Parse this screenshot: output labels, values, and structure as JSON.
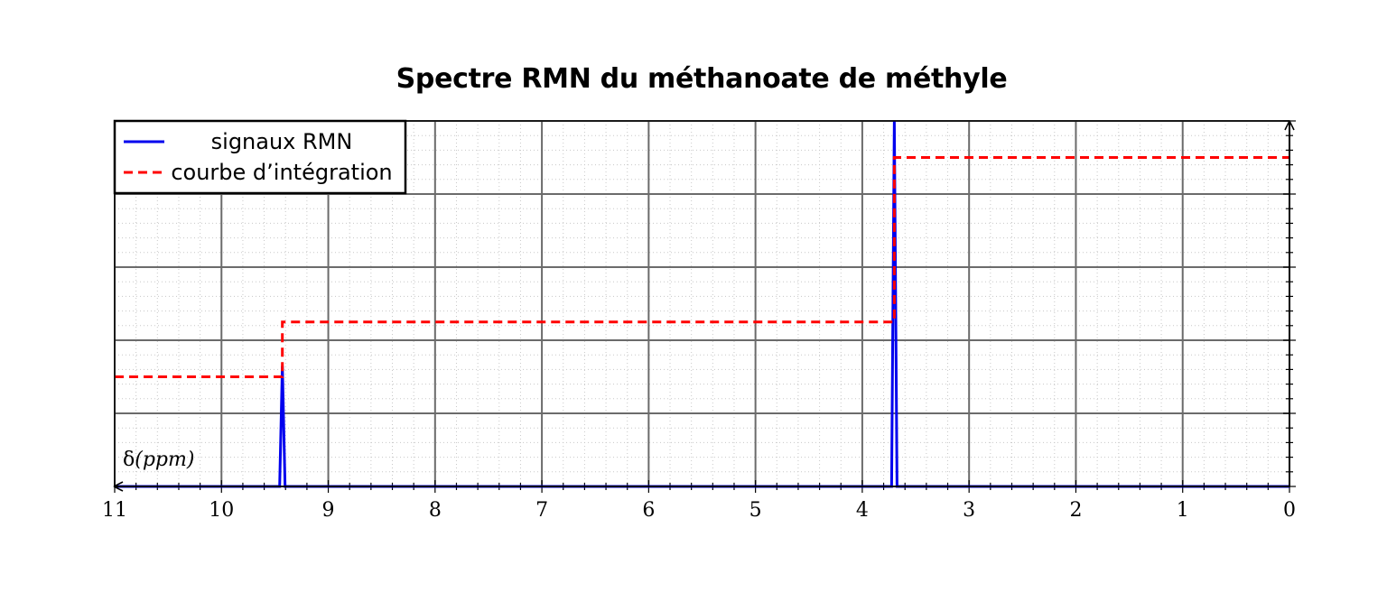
{
  "chart_data": {
    "type": "line",
    "title": "Spectre RMN du méthanoate de méthyle",
    "xlabel_symbol": "δ",
    "xlabel_unit": "(ppm)",
    "xlim": [
      11,
      0
    ],
    "x_reversed": true,
    "x_ticks": [
      "11",
      "10",
      "9",
      "8",
      "7",
      "6",
      "5",
      "4",
      "3",
      "2",
      "1",
      "0"
    ],
    "ylim": [
      0,
      5
    ],
    "y_tick_labels_shown": false,
    "grid": true,
    "legend_placement": "top-left",
    "series": [
      {
        "name": "signaux RMN",
        "style": "solid",
        "color": "#0000ee",
        "peaks": [
          {
            "x": 9.43,
            "height": 1.65
          },
          {
            "x": 3.7,
            "height": 5.0
          }
        ]
      },
      {
        "name": "courbe d’intégration",
        "style": "dashed",
        "color": "#ff0000",
        "steps": [
          {
            "x_from": 11,
            "x_to": 9.43,
            "y": 1.5
          },
          {
            "x_from": 9.43,
            "x_to": 3.7,
            "y": 2.25
          },
          {
            "x_from": 3.7,
            "x_to": 0,
            "y": 4.5
          }
        ]
      }
    ]
  }
}
